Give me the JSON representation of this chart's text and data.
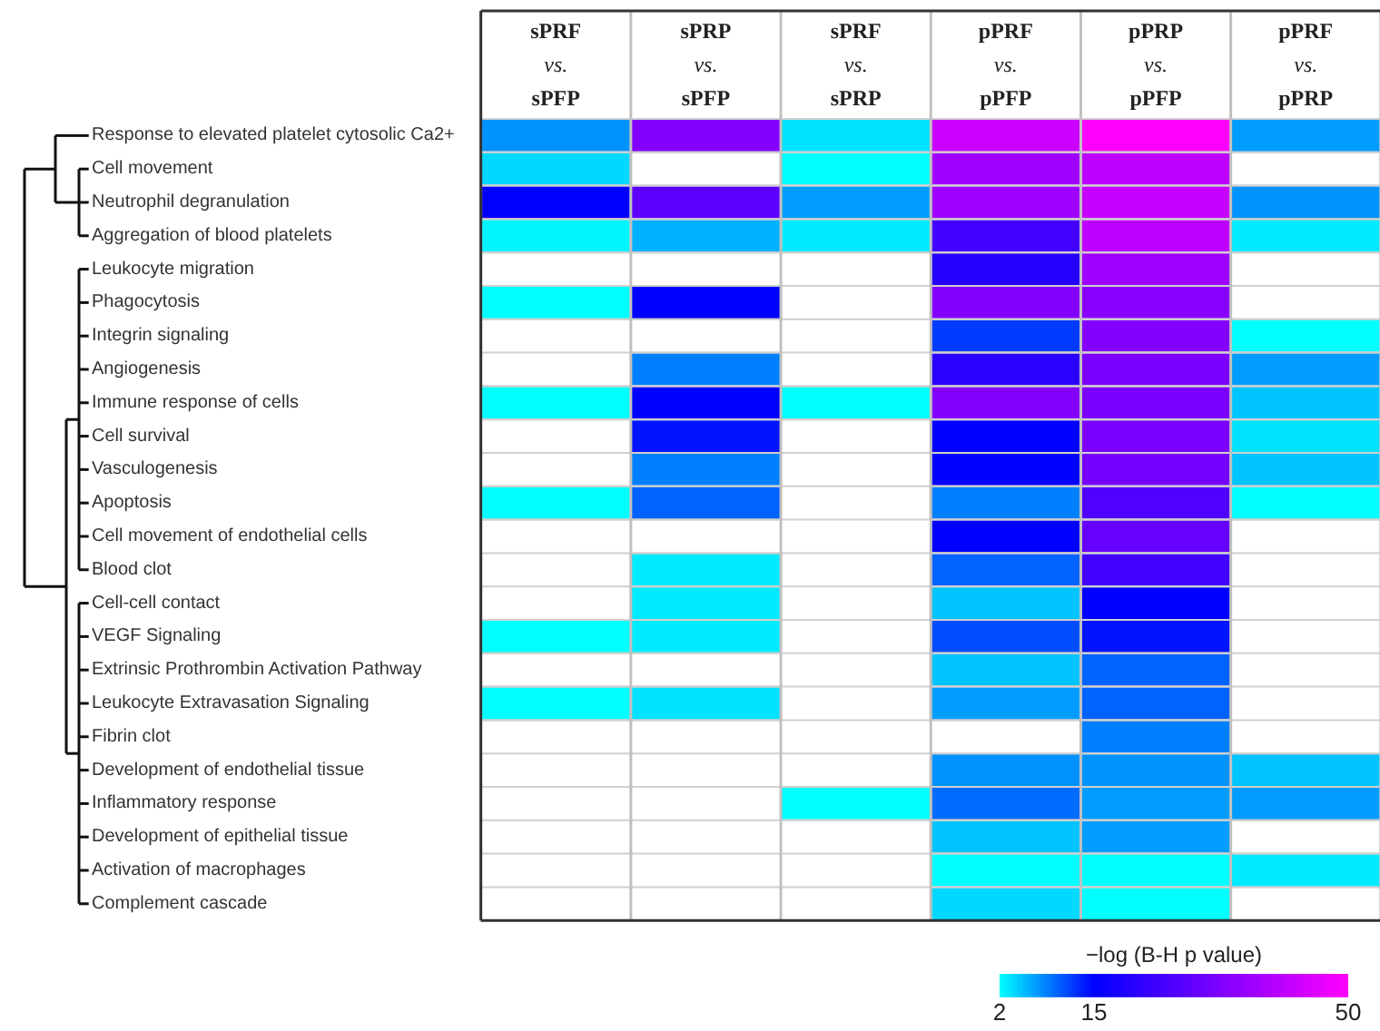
{
  "chart_data": {
    "type": "heatmap",
    "categories": [
      "sPRF vs. sPFP",
      "sPRP vs. sPFP",
      "sPRF vs. sPRP",
      "pPRF vs. pPFP",
      "pPRP vs. pPFP",
      "pPRF vs. pPRP"
    ],
    "y_categories": [
      "Response to elevated platelet cytosolic Ca2+",
      "Cell movement",
      "Neutrophil degranulation",
      "Aggregation of blood platelets",
      "Leukocyte migration",
      "Phagocytosis",
      "Integrin signaling",
      "Angiogenesis",
      "Immune response of cells",
      "Cell survival",
      "Vasculogenesis",
      "Apoptosis",
      "Cell movement of endothelial cells",
      "Blood clot",
      "Cell-cell contact",
      "VEGF Signaling",
      "Extrinsic Prothrombin Activation Pathway",
      "Leukocyte Extravasation Signaling",
      "Fibrin clot",
      "Development of endothelial tissue",
      "Inflammatory response",
      "Development of epithelial tissue",
      "Activation of macrophages",
      "Complement cascade"
    ],
    "cells": [
      [
        7.5,
        33,
        3.5,
        43,
        50,
        7
      ],
      [
        4,
        null,
        2,
        37,
        41,
        null
      ],
      [
        15,
        28,
        7,
        37,
        42,
        7.5
      ],
      [
        2.5,
        6,
        3,
        24,
        41,
        3
      ],
      [
        null,
        null,
        null,
        20,
        37,
        null
      ],
      [
        2,
        15,
        null,
        33,
        34,
        null
      ],
      [
        null,
        null,
        null,
        12,
        33,
        2
      ],
      [
        null,
        8.5,
        null,
        21,
        32,
        7
      ],
      [
        2,
        15,
        2,
        33,
        32,
        5
      ],
      [
        null,
        14,
        null,
        15,
        32,
        3.5
      ],
      [
        null,
        8.5,
        null,
        15,
        31,
        5
      ],
      [
        2,
        10,
        null,
        8.5,
        26,
        2
      ],
      [
        null,
        null,
        null,
        15,
        29,
        null
      ],
      [
        null,
        3,
        null,
        10,
        24,
        null
      ],
      [
        null,
        3,
        null,
        5,
        15,
        null
      ],
      [
        2,
        3,
        null,
        11,
        14,
        null
      ],
      [
        null,
        null,
        null,
        5,
        10,
        null
      ],
      [
        2,
        3.5,
        null,
        7,
        10,
        null
      ],
      [
        null,
        null,
        null,
        null,
        8.5,
        null
      ],
      [
        null,
        null,
        null,
        7.5,
        7.5,
        5
      ],
      [
        null,
        null,
        2,
        9.5,
        7,
        7
      ],
      [
        null,
        null,
        null,
        5,
        7,
        null
      ],
      [
        null,
        null,
        null,
        2,
        2,
        3
      ],
      [
        null,
        null,
        null,
        4,
        2,
        null
      ]
    ],
    "clabel": "−log (B-H p value)",
    "clim": [
      2,
      50
    ],
    "cticks": [
      2,
      15,
      50
    ],
    "colors": [
      "#00ffff",
      "#0000ff",
      "#ff00ff"
    ]
  }
}
